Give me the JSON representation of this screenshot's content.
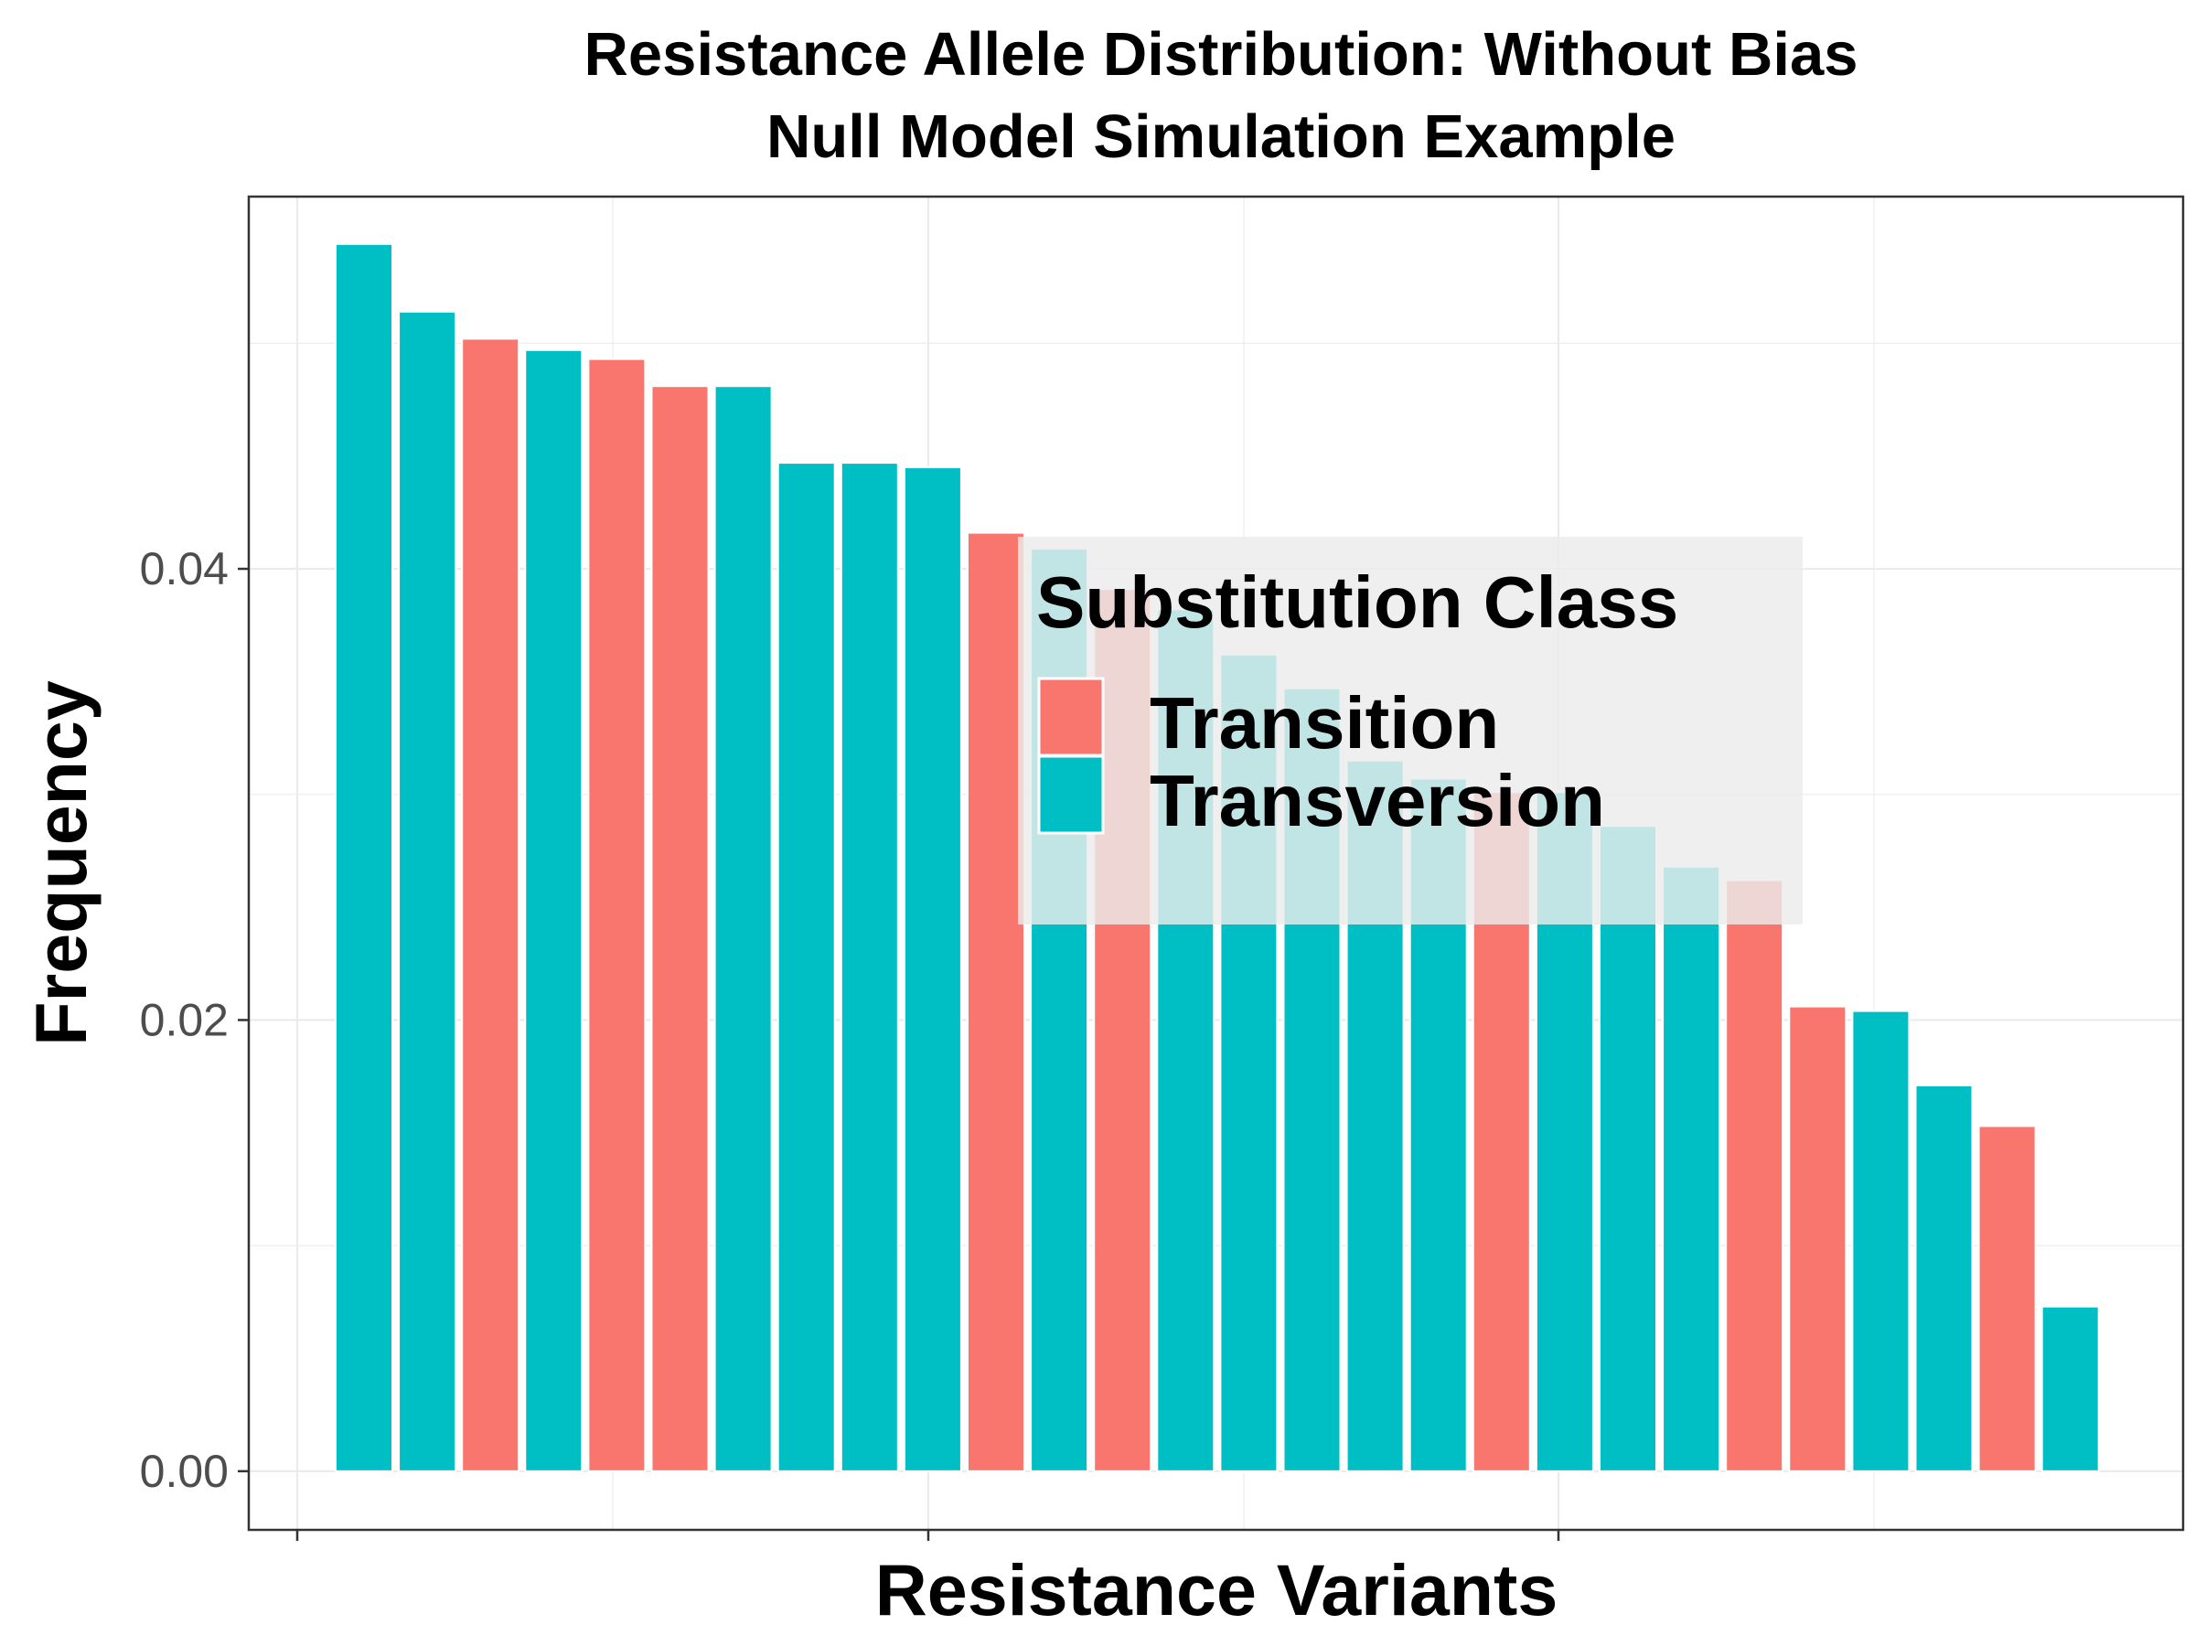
{
  "chart_data": {
    "type": "bar",
    "title": "Resistance Allele Distribution: Without Bias",
    "subtitle": "Null Model Simulation Example",
    "xlabel": "Resistance Variants",
    "ylabel": "Frequency",
    "ylim": [
      -0.0026,
      0.0565
    ],
    "y_ticks": [
      "0.00",
      "0.02",
      "0.04"
    ],
    "grid": true,
    "legend": {
      "title": "Substitution Class",
      "placement": "inside-center-right",
      "entries": [
        {
          "name": "Transition",
          "color": "#F8766D"
        },
        {
          "name": "Transversion",
          "color": "#00BFC4"
        }
      ]
    },
    "values": [
      0.0544,
      0.0514,
      0.0502,
      0.0497,
      0.0493,
      0.0481,
      0.0481,
      0.0447,
      0.0447,
      0.0445,
      0.0416,
      0.0409,
      0.0391,
      0.0382,
      0.0362,
      0.0347,
      0.0315,
      0.0307,
      0.0301,
      0.0301,
      0.0286,
      0.0268,
      0.0262,
      0.0206,
      0.0204,
      0.0171,
      0.0153,
      0.0073
    ],
    "classes": [
      "Transversion",
      "Transversion",
      "Transition",
      "Transversion",
      "Transition",
      "Transition",
      "Transversion",
      "Transversion",
      "Transversion",
      "Transversion",
      "Transition",
      "Transversion",
      "Transition",
      "Transversion",
      "Transversion",
      "Transversion",
      "Transversion",
      "Transversion",
      "Transition",
      "Transversion",
      "Transversion",
      "Transversion",
      "Transition",
      "Transition",
      "Transversion",
      "Transversion",
      "Transition",
      "Transversion"
    ]
  },
  "colors": {
    "transition": "#F8766D",
    "transversion": "#00BFC4",
    "legend_background": "#EBEBEB",
    "gridline": "#EBEBEB",
    "panel_border": "#333333"
  }
}
